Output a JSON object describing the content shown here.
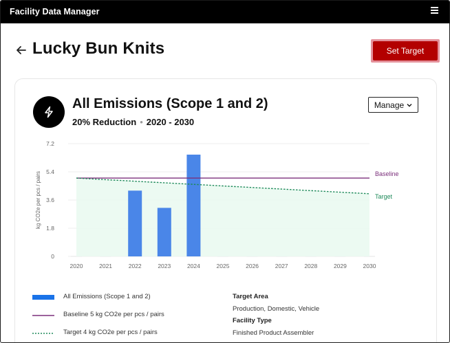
{
  "app": {
    "title": "Facility Data Manager",
    "menu_icon": "hamburger-icon"
  },
  "header": {
    "facility_name": "Lucky Bun Knits",
    "back_icon": "arrow-left-icon",
    "set_target_label": "Set Target"
  },
  "card": {
    "icon": "lightning-icon",
    "title": "All Emissions (Scope 1 and 2)",
    "reduction": "20% Reduction",
    "period": "2020 - 2030",
    "manage_label": "Manage"
  },
  "chart_data": {
    "type": "bar",
    "categories": [
      "2020",
      "2021",
      "2022",
      "2023",
      "2024",
      "2025",
      "2026",
      "2027",
      "2028",
      "2029",
      "2030"
    ],
    "series": [
      {
        "name": "All Emissions (Scope 1 and 2)",
        "values": [
          0,
          0,
          4.2,
          3.1,
          6.5,
          0,
          0,
          0,
          0,
          0,
          0
        ],
        "color": "#4a86e8"
      },
      {
        "name": "Baseline",
        "type": "line",
        "values": [
          5,
          5,
          5,
          5,
          5,
          5,
          5,
          5,
          5,
          5,
          5
        ],
        "color": "#7b2f7b"
      },
      {
        "name": "Target",
        "type": "line",
        "dashed": true,
        "values": [
          5,
          4.9,
          4.8,
          4.7,
          4.6,
          4.5,
          4.4,
          4.3,
          4.2,
          4.1,
          4.0
        ],
        "color": "#1e8a5a"
      }
    ],
    "ylabel": "kg CO2e per pcs / pairs",
    "yticks": [
      "0",
      "1.8",
      "3.6",
      "5.4",
      "7.2"
    ],
    "ylim": [
      0,
      7.2
    ],
    "line_labels": {
      "baseline": "Baseline",
      "target": "Target"
    },
    "grid": true
  },
  "legend": [
    {
      "label": "All Emissions (Scope 1 and 2)",
      "style": "bar",
      "color": "#1a73e8"
    },
    {
      "label": "Baseline 5 kg CO2e per pcs / pairs",
      "style": "line",
      "color": "#7b2f7b"
    },
    {
      "label": "Target 4 kg CO2e per pcs / pairs",
      "style": "dashed",
      "color": "#1e8a5a"
    }
  ],
  "details": {
    "target_area_heading": "Target Area",
    "target_area_value": "Production, Domestic, Vehicle",
    "facility_type_heading": "Facility Type",
    "facility_type_value": "Finished Product Assembler"
  }
}
